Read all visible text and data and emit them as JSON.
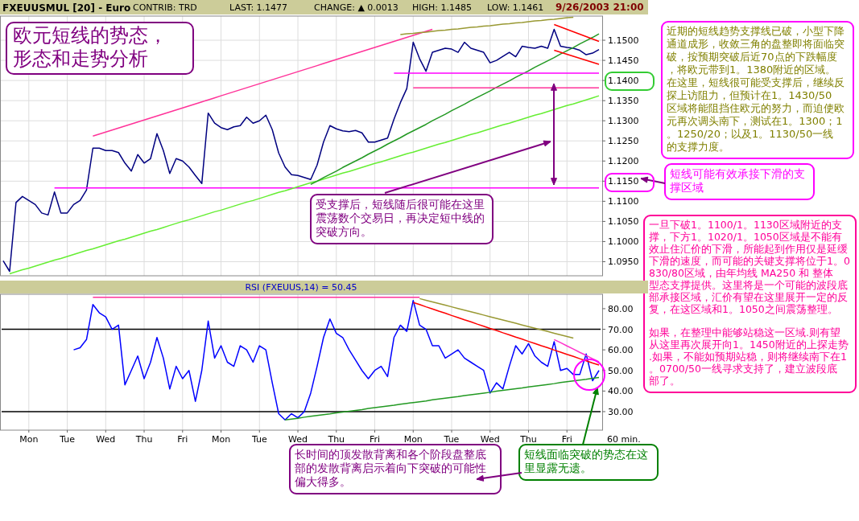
{
  "chart_data": [
    {
      "type": "line",
      "title": "欧元短线的势态，形态和走势分析",
      "subtitle": "FXEUUSMUL [20] - Euro",
      "annotations": [
        "CONTRIB: TRD",
        "LAST: 1.1477",
        "CHANGE: ▲ 0.0013",
        "HIGH: 1.1485",
        "LOW: 1.1461",
        "9/26/2003 21:00",
        "近期的短线趋势支撑线已破，小型下降通道成形，收敛三角的盘整即将面临突破，按预期突破后近70点的下跌幅度，将欧元带到1。1380附近的区域。在这里，短线很可能受支撑后，继续反探上访阻力，但预计在1。1430/50区域将能阻挡住欧元的努力，而迫使欧元再次调头南下，测试在1。1300；1。1250/20；以及1。1130/50一线的支撑力度。",
        "短线可能有效承接下滑的支撑区域",
        "受支撑后，短线随后很可能在这里震荡数个交易日，再决定短中线的突破方向。",
        "一旦下破1。1100/1。1130区域附近的支撑，下方1。1020/1。1050区域是不能有效止住汇价的下滑，所能起到作用仅是延缓下滑的速度，而可能的关键支撑将位于1。0830/80区域，由年均线 MA250 和 整体型态支撑提供。这里将是一个可能的波段底部承接区域，汇价有望在这里展开一定的反复，在这区域和1。1050之间震荡整理。",
        "如果，在整理中能够站稳这一区域.则有望从这里再次展开向1。1450附近的上探走势.如果，不能如预期站稳，则将继续南下在1。0700/50一线寻求支持了，建立波段底部了。"
      ],
      "categories": [
        null,
        null,
        null,
        null,
        null,
        null,
        null,
        null,
        null,
        null,
        null,
        null,
        null,
        null,
        null,
        null,
        null,
        null,
        null,
        null,
        null,
        null,
        null,
        null,
        null,
        null,
        null,
        null,
        null,
        null,
        null,
        null,
        null,
        null,
        null,
        null,
        null,
        null,
        null,
        null,
        null,
        null,
        null,
        null,
        null,
        null,
        null,
        null,
        null,
        null,
        null,
        null,
        null,
        null,
        null,
        null,
        null,
        null,
        null,
        null,
        null,
        null,
        null,
        null,
        null,
        null,
        null,
        null,
        null,
        null,
        null,
        null,
        null,
        null,
        null,
        null,
        null,
        null,
        null,
        null,
        null,
        null,
        null,
        null,
        null,
        null,
        null,
        null,
        null,
        null,
        null,
        null,
        null,
        null
      ],
      "ylim": [
        1.0915,
        1.156
      ],
      "yticks": [
        {
          "value": 1.095,
          "label": "1.0950"
        },
        {
          "value": 1.1,
          "label": "1.1000"
        },
        {
          "value": 1.105,
          "label": "1.1050"
        },
        {
          "value": 1.11,
          "label": "1.1100"
        },
        {
          "value": 1.115,
          "label": "1.1150"
        },
        {
          "value": 1.12,
          "label": "1.1200"
        },
        {
          "value": 1.125,
          "label": "1.1250"
        },
        {
          "value": 1.13,
          "label": "1.1300"
        },
        {
          "value": 1.135,
          "label": "1.1350"
        },
        {
          "value": 1.14,
          "label": "1.1400"
        },
        {
          "value": 1.145,
          "label": "1.1450"
        },
        {
          "value": 1.15,
          "label": "1.1500"
        }
      ],
      "tick_labels": "y",
      "grid": true,
      "series": [
        {
          "color": "#000080",
          "values": [
            1.0952,
            1.0926,
            1.1097,
            1.1112,
            1.1102,
            1.1092,
            1.1071,
            1.1066,
            1.1123,
            1.1071,
            1.1071,
            1.1092,
            1.1102,
            1.1128,
            1.1232,
            1.1232,
            1.1226,
            1.1226,
            1.1221,
            1.1195,
            1.1175,
            1.1216,
            1.1195,
            1.1206,
            1.1268,
            1.1226,
            1.1169,
            1.1206,
            1.12,
            1.1185,
            1.1164,
            1.1144,
            1.1319,
            1.1294,
            1.1283,
            1.1278,
            1.1285,
            1.1288,
            1.1309,
            1.1294,
            1.13,
            1.1314,
            1.1278,
            1.122,
            1.1185,
            1.1166,
            1.1164,
            1.1159,
            1.1154,
            1.119,
            1.1247,
            1.1288,
            1.128,
            1.1275,
            1.1273,
            1.1276,
            1.127,
            1.1247,
            1.1247,
            1.1252,
            1.1257,
            1.1304,
            1.1345,
            1.138,
            1.1495,
            1.1454,
            1.1423,
            1.147,
            1.1475,
            1.148,
            1.1478,
            1.147,
            1.1495,
            1.148,
            1.1475,
            1.147,
            1.1444,
            1.145,
            1.146,
            1.147,
            1.1459,
            1.1485,
            1.1482,
            1.148,
            1.1485,
            1.148,
            1.1527,
            1.1485,
            1.1482,
            1.148,
            1.1475,
            1.1464,
            1.1468,
            1.1477
          ]
        },
        {
          "type": "line",
          "color": "#ff3399",
          "values": [
            null,
            null,
            null,
            null,
            null,
            null,
            null,
            null,
            null,
            null,
            null,
            null,
            null,
            null,
            1.1262,
            1.1267,
            1.1272,
            1.1277,
            1.1282,
            1.1287,
            1.1292,
            1.1297,
            1.1302,
            1.1307,
            1.1312,
            1.1317,
            1.1322,
            1.1327,
            1.1332,
            1.1337,
            1.1342,
            1.1347,
            1.1352,
            1.1357,
            1.1362,
            1.1367,
            1.1372,
            1.1377,
            1.1382,
            1.1387,
            1.1392,
            1.1397,
            1.1402,
            1.1407,
            1.1412,
            1.1417,
            1.1422,
            1.1427,
            1.1432,
            1.1437,
            1.1442,
            1.1447,
            1.1452,
            1.1457,
            1.1462,
            1.1467,
            1.1472,
            1.1477,
            1.1482,
            1.1487,
            1.1492,
            1.1497,
            1.1502,
            1.1507,
            1.1512,
            1.1517,
            1.1522,
            1.1527,
            null,
            null,
            null,
            null,
            null,
            null,
            null,
            null,
            null,
            null,
            null,
            null,
            null,
            null,
            null,
            null,
            null,
            null,
            null,
            null,
            null,
            null,
            null,
            null,
            null,
            null
          ]
        },
        {
          "type": "line",
          "color": "#ff00ff",
          "values": [
            null,
            null,
            null,
            null,
            null,
            null,
            null,
            null,
            1.1133,
            1.1133,
            1.1133,
            1.1133,
            1.1133,
            1.1133,
            1.1133,
            1.1133,
            1.1133,
            1.1133,
            1.1133,
            1.1133,
            1.1133,
            1.1133,
            1.1133,
            1.1133,
            1.1133,
            1.1133,
            1.1133,
            1.1133,
            1.1133,
            1.1133,
            1.1133,
            1.1133,
            1.1133,
            1.1133,
            1.1133,
            1.1133,
            1.1133,
            1.1133,
            1.1133,
            1.1133,
            1.1133,
            1.1133,
            1.1133,
            1.1133,
            1.1133,
            1.1133,
            1.1133,
            1.1133,
            1.1133,
            1.1133,
            1.1133,
            1.1133,
            1.1133,
            1.1133,
            1.1133,
            1.1133,
            1.1133,
            1.1133,
            1.1133,
            1.1133,
            1.1133,
            1.1133,
            1.1133,
            1.1133,
            1.1133,
            1.1133,
            1.1133,
            1.1133,
            1.1133,
            1.1133,
            1.1133,
            1.1133,
            1.1133,
            1.1133,
            1.1133,
            1.1133,
            1.1133,
            1.1133,
            1.1133,
            1.1133,
            1.1133,
            1.1133,
            1.1133,
            1.1133,
            1.1133,
            1.1133,
            1.1133,
            1.1133,
            1.1133,
            1.1133,
            1.1133,
            1.1133,
            1.1133,
            1.1133
          ]
        },
        {
          "type": "line",
          "color": "#66ee33",
          "values": [
            null,
            1.092,
            1.0925,
            1.093,
            1.0934,
            1.0939,
            1.0944,
            1.0949,
            1.0954,
            1.0958,
            1.0963,
            1.0968,
            1.0973,
            1.0978,
            1.0982,
            1.0987,
            1.0992,
            1.0997,
            1.1002,
            1.1006,
            1.1011,
            1.1016,
            1.1021,
            1.1026,
            1.103,
            1.1035,
            1.104,
            1.1045,
            1.105,
            1.1054,
            1.1059,
            1.1064,
            1.1069,
            1.1074,
            1.1078,
            1.1083,
            1.1088,
            1.1093,
            1.1098,
            1.1102,
            1.1107,
            1.1112,
            1.1117,
            1.1122,
            1.1126,
            1.1131,
            1.1136,
            1.1141,
            1.1146,
            1.115,
            1.1155,
            1.116,
            1.1165,
            1.117,
            1.1174,
            1.1179,
            1.1184,
            1.1189,
            1.1194,
            1.1198,
            1.1203,
            1.1208,
            1.1213,
            1.1218,
            1.1222,
            1.1227,
            1.1232,
            1.1237,
            1.1242,
            1.1246,
            1.1251,
            1.1256,
            1.1261,
            1.1266,
            1.127,
            1.1275,
            1.128,
            1.1285,
            1.129,
            1.1294,
            1.1299,
            1.1304,
            1.1309,
            1.1314,
            1.1318,
            1.1323,
            1.1328,
            1.1333,
            1.1338,
            1.1342,
            1.1347,
            1.1352,
            1.1357,
            1.1362
          ]
        },
        {
          "type": "line",
          "color": "#229922",
          "values": [
            null,
            null,
            null,
            null,
            null,
            null,
            null,
            null,
            null,
            null,
            null,
            null,
            null,
            null,
            null,
            null,
            null,
            null,
            null,
            null,
            null,
            null,
            null,
            null,
            null,
            null,
            null,
            null,
            null,
            null,
            null,
            null,
            null,
            null,
            null,
            null,
            null,
            null,
            null,
            null,
            null,
            null,
            null,
            null,
            null,
            null,
            null,
            null,
            1.1142,
            1.115,
            1.1159,
            1.1167,
            1.1175,
            1.1184,
            1.1192,
            1.12,
            1.1208,
            1.1217,
            1.1225,
            1.1233,
            1.1242,
            1.125,
            1.1258,
            1.1267,
            1.1275,
            1.1283,
            1.1291,
            1.13,
            1.1308,
            1.1316,
            1.1325,
            1.1333,
            1.1341,
            1.135,
            1.1358,
            1.1366,
            1.1374,
            1.1383,
            1.1391,
            1.1399,
            1.1408,
            1.1416,
            1.1424,
            1.1433,
            1.1441,
            1.1449,
            1.1457,
            1.1466,
            1.1474,
            1.1482,
            1.1491,
            1.1499,
            1.1507,
            1.1516
          ]
        },
        {
          "type": "line",
          "color": "#999933",
          "values": [
            null,
            null,
            null,
            null,
            null,
            null,
            null,
            null,
            null,
            null,
            null,
            null,
            null,
            null,
            null,
            null,
            null,
            null,
            null,
            null,
            null,
            null,
            null,
            null,
            null,
            null,
            null,
            null,
            null,
            null,
            null,
            null,
            null,
            null,
            null,
            null,
            null,
            null,
            null,
            null,
            null,
            null,
            null,
            null,
            null,
            null,
            null,
            null,
            null,
            null,
            null,
            null,
            null,
            null,
            null,
            null,
            null,
            null,
            null,
            null,
            null,
            null,
            1.1514,
            1.1516,
            1.1517,
            1.1519,
            1.152,
            1.1522,
            1.1524,
            1.1525,
            1.1527,
            1.1528,
            1.153,
            1.1532,
            1.1533,
            1.1535,
            1.1536,
            1.1538,
            1.154,
            1.1541,
            1.1543,
            1.1544,
            1.1546,
            1.1548,
            1.1549,
            1.1551,
            1.1552,
            1.1554,
            1.1556,
            1.1557,
            null,
            null,
            null,
            null
          ]
        },
        {
          "type": "line",
          "color": "#ff0000",
          "values": [
            null,
            null,
            null,
            null,
            null,
            null,
            null,
            null,
            null,
            null,
            null,
            null,
            null,
            null,
            null,
            null,
            null,
            null,
            null,
            null,
            null,
            null,
            null,
            null,
            null,
            null,
            null,
            null,
            null,
            null,
            null,
            null,
            null,
            null,
            null,
            null,
            null,
            null,
            null,
            null,
            null,
            null,
            null,
            null,
            null,
            null,
            null,
            null,
            null,
            null,
            null,
            null,
            null,
            null,
            null,
            null,
            null,
            null,
            null,
            null,
            null,
            null,
            null,
            null,
            null,
            null,
            null,
            null,
            null,
            null,
            null,
            null,
            null,
            null,
            null,
            null,
            null,
            null,
            null,
            null,
            null,
            null,
            null,
            null,
            null,
            null,
            1.1539,
            1.1533,
            1.1527,
            1.1521,
            1.1515,
            1.1509,
            1.1503,
            1.1497
          ]
        },
        {
          "type": "line",
          "color": "#ff0000",
          "values": [
            null,
            null,
            null,
            null,
            null,
            null,
            null,
            null,
            null,
            null,
            null,
            null,
            null,
            null,
            null,
            null,
            null,
            null,
            null,
            null,
            null,
            null,
            null,
            null,
            null,
            null,
            null,
            null,
            null,
            null,
            null,
            null,
            null,
            null,
            null,
            null,
            null,
            null,
            null,
            null,
            null,
            null,
            null,
            null,
            null,
            null,
            null,
            null,
            null,
            null,
            null,
            null,
            null,
            null,
            null,
            null,
            null,
            null,
            null,
            null,
            null,
            null,
            null,
            null,
            null,
            null,
            null,
            null,
            null,
            null,
            null,
            null,
            null,
            null,
            null,
            null,
            null,
            null,
            null,
            null,
            null,
            null,
            null,
            null,
            null,
            null,
            1.1475,
            1.147,
            1.1465,
            1.146,
            1.1455,
            1.145,
            1.1445,
            1.144
          ]
        },
        {
          "type": "line",
          "color": "#ff00ff",
          "values": [
            null,
            null,
            null,
            null,
            null,
            null,
            null,
            null,
            null,
            null,
            null,
            null,
            null,
            null,
            null,
            null,
            null,
            null,
            null,
            null,
            null,
            null,
            null,
            null,
            null,
            null,
            null,
            null,
            null,
            null,
            null,
            null,
            null,
            null,
            null,
            null,
            null,
            null,
            null,
            null,
            null,
            null,
            null,
            null,
            null,
            null,
            null,
            null,
            null,
            null,
            null,
            null,
            null,
            null,
            null,
            null,
            null,
            null,
            null,
            null,
            null,
            1.1418,
            1.1418,
            1.1418,
            1.1418,
            1.1418,
            1.1418,
            1.1418,
            1.1418,
            1.1418,
            1.1418,
            1.1418,
            1.1418,
            1.1418,
            1.1418,
            1.1418,
            1.1418,
            1.1418,
            1.1418,
            1.1418,
            1.1418,
            1.1418,
            1.1418,
            1.1418,
            1.1418,
            1.1418,
            1.1418,
            1.1418,
            1.1418,
            1.1418,
            1.1418,
            1.1418,
            1.1418,
            1.1418
          ]
        },
        {
          "type": "line",
          "color": "#ff3399",
          "values": [
            null,
            null,
            null,
            null,
            null,
            null,
            null,
            null,
            null,
            null,
            null,
            null,
            null,
            null,
            null,
            null,
            null,
            null,
            null,
            null,
            null,
            null,
            null,
            null,
            null,
            null,
            null,
            null,
            null,
            null,
            null,
            null,
            null,
            null,
            null,
            null,
            null,
            null,
            null,
            null,
            null,
            null,
            null,
            null,
            null,
            null,
            null,
            null,
            null,
            null,
            null,
            null,
            null,
            null,
            null,
            null,
            null,
            null,
            null,
            null,
            null,
            null,
            null,
            null,
            1.1382,
            1.1382,
            1.1382,
            1.1382,
            1.1382,
            1.1382,
            1.1382,
            1.1382,
            1.1382,
            1.1382,
            1.1382,
            1.1382,
            1.1382,
            1.1382,
            1.1382,
            1.1382,
            1.1382,
            1.1382,
            1.1382,
            1.1382,
            1.1382,
            1.1382,
            1.1382,
            1.1382,
            1.1382,
            1.1382,
            1.1382,
            1.1382,
            1.1382,
            1.1382
          ]
        }
      ]
    },
    {
      "type": "line",
      "title": "RSI (FXEUUS,14) = 50.45",
      "xlabel": "60 min.",
      "annotations": [
        "长时间的顶发散背离和各个阶段盘整底部的发散背离启示着向下突破的可能性偏大得多。",
        "短线面临突破的势态在这里显露无遗。"
      ],
      "categories": [
        null,
        null,
        null,
        null,
        "Mon",
        null,
        null,
        null,
        null,
        null,
        "Tue",
        null,
        null,
        null,
        null,
        null,
        "Wed",
        null,
        null,
        null,
        null,
        null,
        "Thu",
        null,
        null,
        null,
        null,
        null,
        "Fri",
        null,
        null,
        null,
        null,
        null,
        "Mon",
        null,
        null,
        null,
        null,
        null,
        "Tue",
        null,
        null,
        null,
        null,
        null,
        "Wed",
        null,
        null,
        null,
        null,
        null,
        "Thu",
        null,
        null,
        null,
        null,
        null,
        "Fri",
        null,
        null,
        null,
        null,
        null,
        "Mon",
        null,
        null,
        null,
        null,
        null,
        "Tue",
        null,
        null,
        null,
        null,
        null,
        "Wed",
        null,
        null,
        null,
        null,
        null,
        "Thu",
        null,
        null,
        null,
        null,
        null,
        "Fri",
        null,
        null,
        null,
        null,
        null
      ],
      "ylim": [
        21,
        87
      ],
      "yticks": [
        {
          "value": 30,
          "label": "30.00"
        },
        {
          "value": 40,
          "label": "40.00"
        },
        {
          "value": 50,
          "label": "50.00"
        },
        {
          "value": 60,
          "label": "60.00"
        },
        {
          "value": 70,
          "label": "70.00"
        },
        {
          "value": 80,
          "label": "80.00"
        }
      ],
      "grid": "x",
      "ref_lines": [
        {
          "axis": "y",
          "value": 70,
          "color": "#000000"
        },
        {
          "axis": "y",
          "value": 30,
          "color": "#000000"
        }
      ],
      "series": [
        {
          "color": "#0000ff",
          "values": [
            null,
            null,
            null,
            null,
            null,
            null,
            null,
            null,
            null,
            null,
            null,
            60,
            61,
            65,
            82,
            78,
            76,
            70,
            72,
            43,
            50,
            57,
            46,
            54,
            66,
            56,
            41,
            52,
            46,
            50,
            35,
            50,
            74,
            56,
            62,
            54,
            52,
            62,
            60,
            54,
            62,
            60,
            44,
            29,
            26,
            29,
            27,
            30,
            39,
            52,
            66,
            75,
            68,
            66,
            60,
            55,
            50,
            46,
            50,
            52,
            47,
            66,
            72,
            69,
            84,
            72,
            70,
            62,
            62,
            56,
            58,
            60,
            56,
            54,
            52,
            50,
            39,
            44,
            41,
            52,
            62,
            58,
            63,
            57,
            54,
            52,
            64,
            50,
            51,
            48,
            48,
            58,
            45,
            50
          ]
        },
        {
          "type": "line",
          "color": "#ff3399",
          "values": [
            null,
            null,
            null,
            null,
            null,
            null,
            null,
            null,
            null,
            null,
            null,
            null,
            null,
            null,
            85.5,
            85.5,
            85.5,
            85.5,
            85.5,
            85.5,
            85.5,
            85.5,
            85.5,
            85.5,
            85.5,
            85.5,
            85.5,
            85.5,
            85.5,
            85.5,
            85.5,
            85.5,
            85.5,
            85.5,
            85.5,
            85.5,
            85.5,
            85.5,
            85.5,
            85.5,
            85.5,
            85.5,
            85.5,
            85.5,
            85.5,
            85.5,
            85.5,
            85.5,
            85.5,
            85.5,
            85.5,
            85.5,
            85.5,
            85.5,
            85.5,
            85.5,
            85.5,
            85.5,
            85.5,
            85.5,
            85.5,
            85.5,
            85.5,
            85.5,
            85.5,
            85.5,
            null,
            null,
            null,
            null,
            null,
            null,
            null,
            null,
            null,
            null,
            null,
            null,
            null,
            null,
            null,
            null,
            null,
            null,
            null,
            null,
            null,
            null,
            null,
            null,
            null,
            null,
            null,
            null
          ]
        },
        {
          "type": "line",
          "color": "#999933",
          "values": [
            null,
            null,
            null,
            null,
            null,
            null,
            null,
            null,
            null,
            null,
            null,
            null,
            null,
            null,
            null,
            null,
            null,
            null,
            null,
            null,
            null,
            null,
            null,
            null,
            null,
            null,
            null,
            null,
            null,
            null,
            null,
            null,
            null,
            null,
            null,
            null,
            null,
            null,
            null,
            null,
            null,
            null,
            null,
            null,
            null,
            null,
            null,
            null,
            null,
            null,
            null,
            null,
            null,
            null,
            null,
            null,
            null,
            null,
            null,
            null,
            null,
            null,
            null,
            null,
            null,
            84.9,
            84.1,
            83.3,
            82.5,
            81.7,
            80.9,
            80.1,
            79.3,
            78.5,
            77.7,
            76.9,
            76.1,
            75.3,
            74.5,
            73.7,
            72.9,
            72.1,
            71.3,
            70.5,
            69.7,
            68.9,
            68.1,
            67.3,
            66.5,
            65.7,
            null,
            null,
            null,
            null
          ]
        },
        {
          "type": "line",
          "color": "#ff0000",
          "values": [
            null,
            null,
            null,
            null,
            null,
            null,
            null,
            null,
            null,
            null,
            null,
            null,
            null,
            null,
            null,
            null,
            null,
            null,
            null,
            null,
            null,
            null,
            null,
            null,
            null,
            null,
            null,
            null,
            null,
            null,
            null,
            null,
            null,
            null,
            null,
            null,
            null,
            null,
            null,
            null,
            null,
            null,
            null,
            null,
            null,
            null,
            null,
            null,
            null,
            null,
            null,
            null,
            null,
            null,
            null,
            null,
            null,
            null,
            null,
            null,
            null,
            null,
            null,
            null,
            83,
            82,
            80.9,
            79.9,
            78.8,
            77.8,
            76.7,
            75.7,
            74.6,
            73.6,
            72.5,
            71.5,
            70.4,
            69.4,
            68.3,
            67.3,
            66.2,
            65.2,
            64.1,
            63.1,
            62,
            61,
            59.9,
            58.9,
            57.8,
            56.8,
            55.7,
            54.7,
            53.6,
            52.6
          ]
        },
        {
          "type": "line",
          "color": "#ff33cc",
          "values": [
            null,
            null,
            null,
            null,
            null,
            null,
            null,
            null,
            null,
            null,
            null,
            null,
            null,
            null,
            null,
            null,
            null,
            null,
            null,
            null,
            null,
            null,
            null,
            null,
            null,
            null,
            null,
            null,
            null,
            null,
            null,
            null,
            null,
            null,
            null,
            null,
            null,
            null,
            null,
            null,
            null,
            null,
            null,
            null,
            null,
            null,
            null,
            null,
            null,
            null,
            null,
            null,
            null,
            null,
            null,
            null,
            null,
            null,
            null,
            null,
            null,
            null,
            null,
            null,
            null,
            null,
            null,
            null,
            null,
            null,
            null,
            null,
            null,
            null,
            null,
            null,
            null,
            null,
            null,
            null,
            null,
            null,
            null,
            null,
            null,
            null,
            65,
            63.5,
            61.9,
            60.4,
            58.8,
            57.3,
            55.7,
            54.2
          ]
        },
        {
          "type": "line",
          "color": "#229922",
          "values": [
            null,
            null,
            null,
            null,
            null,
            null,
            null,
            null,
            null,
            null,
            null,
            null,
            null,
            null,
            null,
            null,
            null,
            null,
            null,
            null,
            null,
            null,
            null,
            null,
            null,
            null,
            null,
            null,
            null,
            null,
            null,
            null,
            null,
            null,
            null,
            null,
            null,
            null,
            null,
            null,
            null,
            null,
            null,
            null,
            26,
            26.4,
            26.8,
            27.3,
            27.7,
            28.1,
            28.5,
            28.9,
            29.4,
            29.8,
            30.2,
            30.6,
            31,
            31.5,
            31.9,
            32.3,
            32.7,
            33.1,
            33.6,
            34,
            34.4,
            34.8,
            35.2,
            35.7,
            36.1,
            36.5,
            36.9,
            37.3,
            37.8,
            38.2,
            38.6,
            39,
            39.4,
            39.9,
            40.3,
            40.7,
            41.1,
            41.5,
            42,
            42.4,
            42.8,
            43.2,
            43.6,
            44.1,
            44.5,
            44.9,
            45.3,
            45.7,
            46.2,
            46.6
          ]
        }
      ]
    }
  ]
}
